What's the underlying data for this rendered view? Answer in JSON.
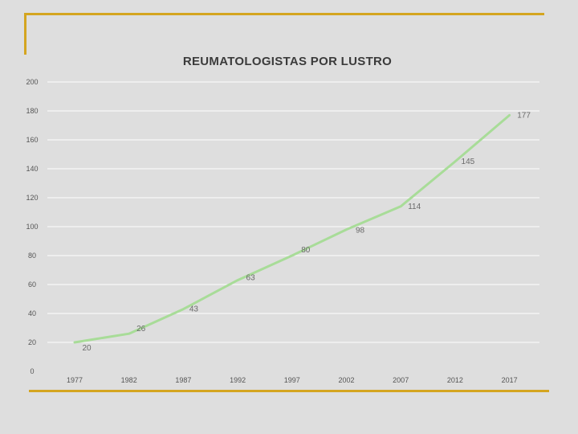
{
  "chart_data": {
    "type": "line",
    "title": "REUMATOLOGISTAS POR LUSTRO",
    "xlabel": "",
    "ylabel": "",
    "categories": [
      "1977",
      "1982",
      "1987",
      "1992",
      "1997",
      "2002",
      "2007",
      "2012",
      "2017"
    ],
    "values": [
      20,
      26,
      43,
      63,
      80,
      98,
      114,
      145,
      177
    ],
    "value_labels": [
      "20",
      "26",
      "43",
      "63",
      "80",
      "98",
      "114",
      "145",
      "177"
    ],
    "yticks": [
      "0",
      "20",
      "40",
      "60",
      "80",
      "100",
      "120",
      "140",
      "160",
      "180",
      "200"
    ],
    "ylim": [
      0,
      200
    ],
    "grid": true,
    "legend": "none",
    "line_color": "#a8dc98",
    "grid_color": "#ffffff"
  }
}
